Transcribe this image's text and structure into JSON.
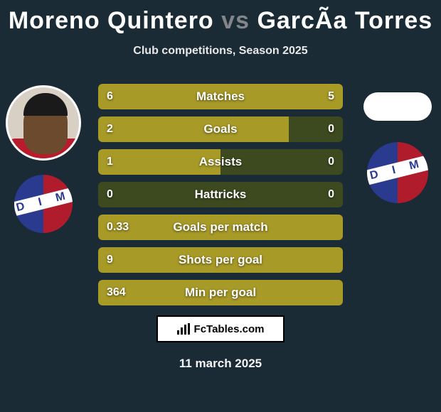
{
  "title": {
    "player1": "Moreno Quintero",
    "vs": "vs",
    "player2": "GarcÃ­a Torres"
  },
  "subtitle": "Club competitions, Season 2025",
  "colors": {
    "background": "#1a2b35",
    "bar_fill": "#a89a27",
    "bar_empty": "#3d4a1f",
    "title_accent": "#82868a",
    "club_blue": "#2a3a8f",
    "club_red": "#b01c2c"
  },
  "left": {
    "has_photo": true,
    "club_initials": "D I M"
  },
  "right": {
    "has_photo": false,
    "club_initials": "D I M"
  },
  "stats": [
    {
      "label": "Matches",
      "v1": "6",
      "v2": "5",
      "pct1": 55,
      "pct2": 45
    },
    {
      "label": "Goals",
      "v1": "2",
      "v2": "0",
      "pct1": 78,
      "pct2": 0
    },
    {
      "label": "Assists",
      "v1": "1",
      "v2": "0",
      "pct1": 50,
      "pct2": 0
    },
    {
      "label": "Hattricks",
      "v1": "0",
      "v2": "0",
      "pct1": 0,
      "pct2": 0
    },
    {
      "label": "Goals per match",
      "v1": "0.33",
      "v2": "",
      "pct1": 100,
      "pct2": 0
    },
    {
      "label": "Shots per goal",
      "v1": "9",
      "v2": "",
      "pct1": 100,
      "pct2": 0
    },
    {
      "label": "Min per goal",
      "v1": "364",
      "v2": "",
      "pct1": 100,
      "pct2": 0
    }
  ],
  "footer": {
    "site": "FcTables.com"
  },
  "date": "11 march 2025"
}
